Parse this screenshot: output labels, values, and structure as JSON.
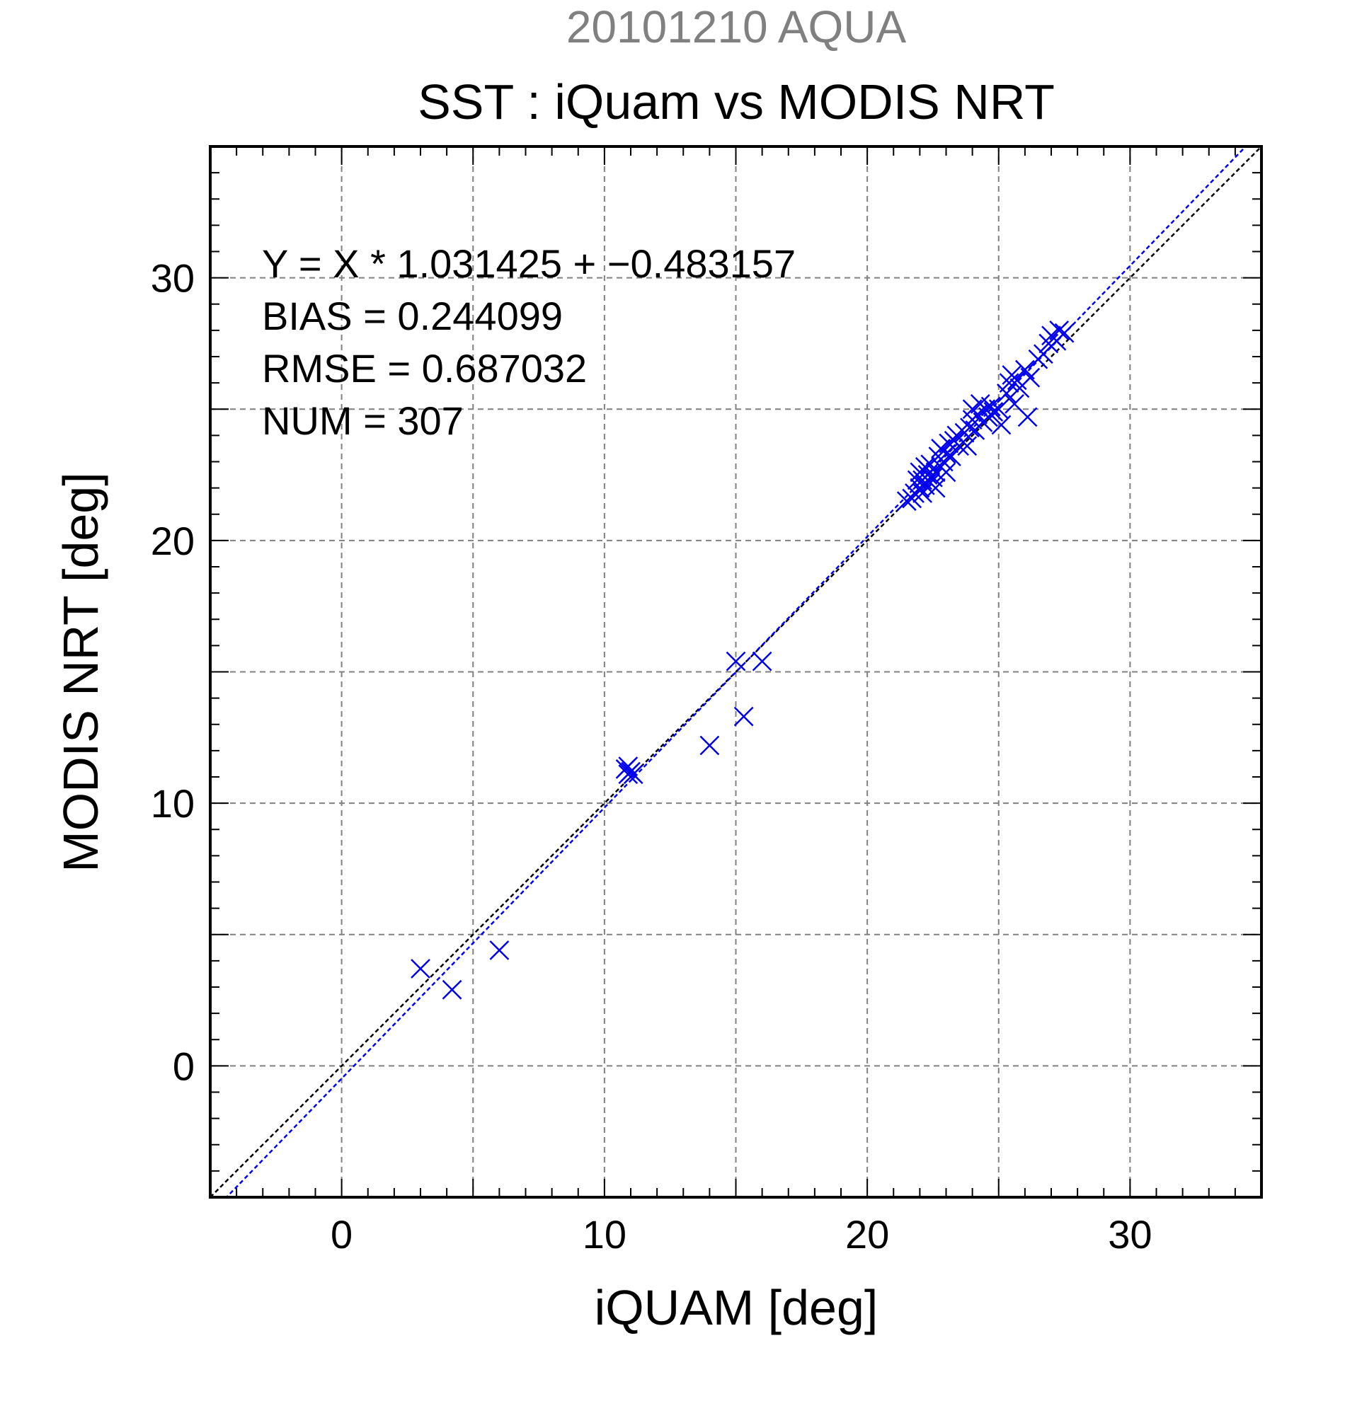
{
  "chart_data": {
    "type": "scatter",
    "title": "20101210 AQUA",
    "subtitle": "SST : iQuam vs MODIS NRT",
    "xlabel": "iQUAM [deg]",
    "ylabel": "MODIS NRT [deg]",
    "xlim": [
      -5,
      35
    ],
    "ylim": [
      -5,
      35
    ],
    "xticks": [
      0,
      10,
      20,
      30
    ],
    "yticks": [
      0,
      10,
      20,
      30
    ],
    "grid": true,
    "colors": {
      "points": "#0000ee",
      "fit_line": "#0000ff",
      "identity_line": "#000000",
      "title": "#808080",
      "grid": "#808080"
    },
    "marker": "x",
    "annotations": [
      "Y = X * 1.031425 + −0.483157",
      "BIAS = 0.244099",
      "RMSE = 0.687032",
      "NUM = 307"
    ],
    "fit": {
      "slope": 1.031425,
      "intercept": -0.483157
    },
    "identity": {
      "slope": 1,
      "intercept": 0
    },
    "points": [
      [
        3.0,
        3.7
      ],
      [
        4.2,
        2.9
      ],
      [
        6.0,
        4.4
      ],
      [
        10.8,
        11.3
      ],
      [
        10.9,
        11.1
      ],
      [
        11.0,
        11.2
      ],
      [
        10.9,
        11.4
      ],
      [
        11.1,
        11.1
      ],
      [
        14.0,
        12.2
      ],
      [
        15.0,
        15.4
      ],
      [
        15.3,
        13.3
      ],
      [
        16.0,
        15.4
      ],
      [
        21.5,
        21.5
      ],
      [
        21.7,
        21.6
      ],
      [
        21.8,
        21.8
      ],
      [
        21.9,
        22.3
      ],
      [
        22.0,
        22.0
      ],
      [
        22.0,
        22.6
      ],
      [
        22.1,
        22.3
      ],
      [
        22.1,
        21.8
      ],
      [
        22.2,
        22.8
      ],
      [
        22.2,
        22.1
      ],
      [
        22.3,
        22.5
      ],
      [
        22.4,
        22.2
      ],
      [
        22.4,
        22.9
      ],
      [
        22.5,
        22.4
      ],
      [
        22.6,
        22.6
      ],
      [
        22.6,
        22.0
      ],
      [
        22.7,
        23.2
      ],
      [
        22.8,
        22.8
      ],
      [
        22.8,
        23.5
      ],
      [
        22.9,
        23.0
      ],
      [
        23.0,
        23.3
      ],
      [
        23.0,
        22.6
      ],
      [
        23.1,
        23.7
      ],
      [
        23.2,
        23.2
      ],
      [
        23.3,
        23.8
      ],
      [
        23.4,
        24.0
      ],
      [
        23.5,
        23.6
      ],
      [
        23.7,
        24.1
      ],
      [
        23.8,
        23.6
      ],
      [
        23.9,
        24.3
      ],
      [
        24.0,
        24.6
      ],
      [
        24.0,
        25.0
      ],
      [
        24.1,
        24.2
      ],
      [
        24.2,
        24.8
      ],
      [
        24.3,
        25.2
      ],
      [
        24.4,
        24.5
      ],
      [
        24.5,
        25.0
      ],
      [
        24.6,
        24.7
      ],
      [
        24.7,
        25.1
      ],
      [
        24.8,
        24.9
      ],
      [
        25.0,
        25.0
      ],
      [
        25.1,
        24.4
      ],
      [
        25.3,
        25.6
      ],
      [
        25.4,
        26.0
      ],
      [
        25.5,
        26.3
      ],
      [
        25.6,
        25.2
      ],
      [
        25.7,
        26.1
      ],
      [
        25.8,
        25.8
      ],
      [
        26.0,
        26.5
      ],
      [
        26.1,
        24.7
      ],
      [
        26.2,
        26.2
      ],
      [
        26.5,
        26.9
      ],
      [
        26.7,
        27.1
      ],
      [
        26.9,
        27.5
      ],
      [
        27.0,
        27.8
      ],
      [
        27.2,
        27.6
      ],
      [
        27.3,
        28.0
      ],
      [
        27.5,
        27.9
      ]
    ]
  }
}
